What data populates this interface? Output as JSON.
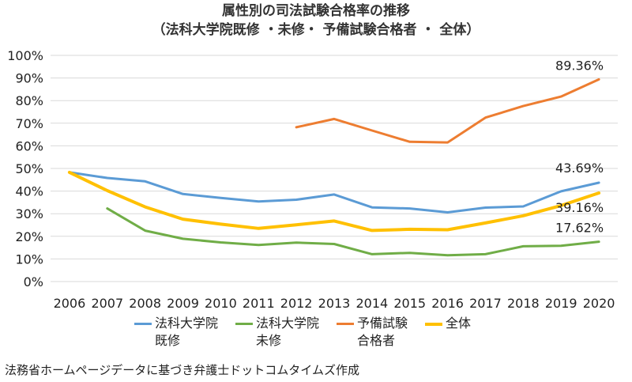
{
  "chart_data": {
    "type": "line",
    "title": "属性別の司法試験合格率の推移",
    "subtitle": "（法科大学院既修 ・未修・ 予備試験合格者 ・ 全体）",
    "categories": [
      "2006",
      "2007",
      "2008",
      "2009",
      "2010",
      "2011",
      "2012",
      "2013",
      "2014",
      "2015",
      "2016",
      "2017",
      "2018",
      "2019",
      "2020"
    ],
    "ylim": [
      0,
      100
    ],
    "y_ticks": [
      "0%",
      "10%",
      "20%",
      "30%",
      "40%",
      "50%",
      "60%",
      "70%",
      "80%",
      "90%",
      "100%"
    ],
    "grid": true,
    "legend_position": "bottom",
    "series": [
      {
        "name": "法科大学院\n既修",
        "color": "#5b9bd5",
        "values": [
          48.3,
          45.8,
          44.3,
          38.7,
          37.0,
          35.4,
          36.2,
          38.5,
          32.8,
          32.3,
          30.6,
          32.7,
          33.2,
          39.9,
          43.69
        ]
      },
      {
        "name": "法科大学院\n未修",
        "color": "#70ad47",
        "values": [
          null,
          32.3,
          22.5,
          18.9,
          17.3,
          16.2,
          17.2,
          16.6,
          12.1,
          12.7,
          11.6,
          12.1,
          15.6,
          15.8,
          17.62
        ]
      },
      {
        "name": "予備試験\n合格者",
        "color": "#ed7d31",
        "values": [
          null,
          null,
          null,
          null,
          null,
          null,
          68.2,
          71.9,
          66.8,
          61.8,
          61.5,
          72.5,
          77.6,
          81.8,
          89.36
        ]
      },
      {
        "name": "全体",
        "color": "#ffc000",
        "values": [
          48.3,
          40.2,
          33.0,
          27.6,
          25.4,
          23.5,
          25.1,
          26.8,
          22.6,
          23.1,
          22.9,
          25.9,
          29.1,
          33.6,
          39.16
        ]
      }
    ],
    "annotations": [
      {
        "series": 2,
        "index": 14,
        "text": "89.36%"
      },
      {
        "series": 0,
        "index": 14,
        "text": "43.69%"
      },
      {
        "series": 3,
        "index": 14,
        "text": "39.16%"
      },
      {
        "series": 1,
        "index": 14,
        "text": "17.62%"
      }
    ]
  },
  "source_note": "法務省ホームページデータに基づき弁護士ドットコムタイムズ作成"
}
